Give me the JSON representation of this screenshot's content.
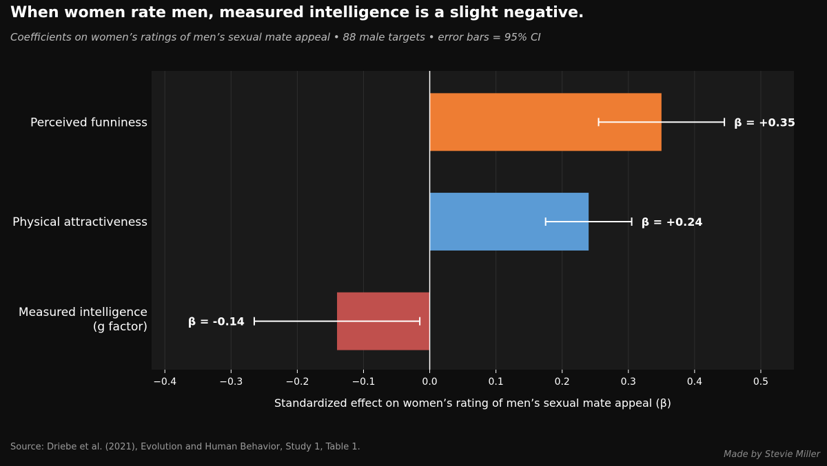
{
  "title": "When women rate men, measured intelligence is a slight negative.",
  "subtitle": "Coefficients on women’s ratings of men’s sexual mate appeal  •  88 male targets  •  error bars = 95% CI",
  "source": "Source: Driebe et al. (2021), Evolution and Human Behavior, Study 1, Table 1.",
  "credit": "Made by Stevie Miller",
  "chart_data": {
    "type": "bar",
    "orientation": "horizontal",
    "xlabel": "Standardized effect on women’s rating of men’s sexual mate appeal (β)",
    "ylabel": "",
    "xlim": [
      -0.42,
      0.55
    ],
    "xticks": [
      -0.4,
      -0.3,
      -0.2,
      -0.1,
      0.0,
      0.1,
      0.2,
      0.3,
      0.4,
      0.5
    ],
    "xtick_labels": [
      "−0.4",
      "−0.3",
      "−0.2",
      "−0.1",
      "0.0",
      "0.1",
      "0.2",
      "0.3",
      "0.4",
      "0.5"
    ],
    "grid": true,
    "bars": [
      {
        "label": [
          "Perceived funniness"
        ],
        "value": 0.35,
        "ci": [
          0.255,
          0.445
        ],
        "color": "#ee7d33",
        "value_label": "β = +0.35"
      },
      {
        "label": [
          "Physical attractiveness"
        ],
        "value": 0.24,
        "ci": [
          0.175,
          0.305
        ],
        "color": "#5b9bd5",
        "value_label": "β = +0.24"
      },
      {
        "label": [
          "Measured intelligence",
          "(g factor)"
        ],
        "value": -0.14,
        "ci": [
          -0.265,
          -0.015
        ],
        "color": "#c0504d",
        "value_label": "β = -0.14"
      }
    ]
  }
}
